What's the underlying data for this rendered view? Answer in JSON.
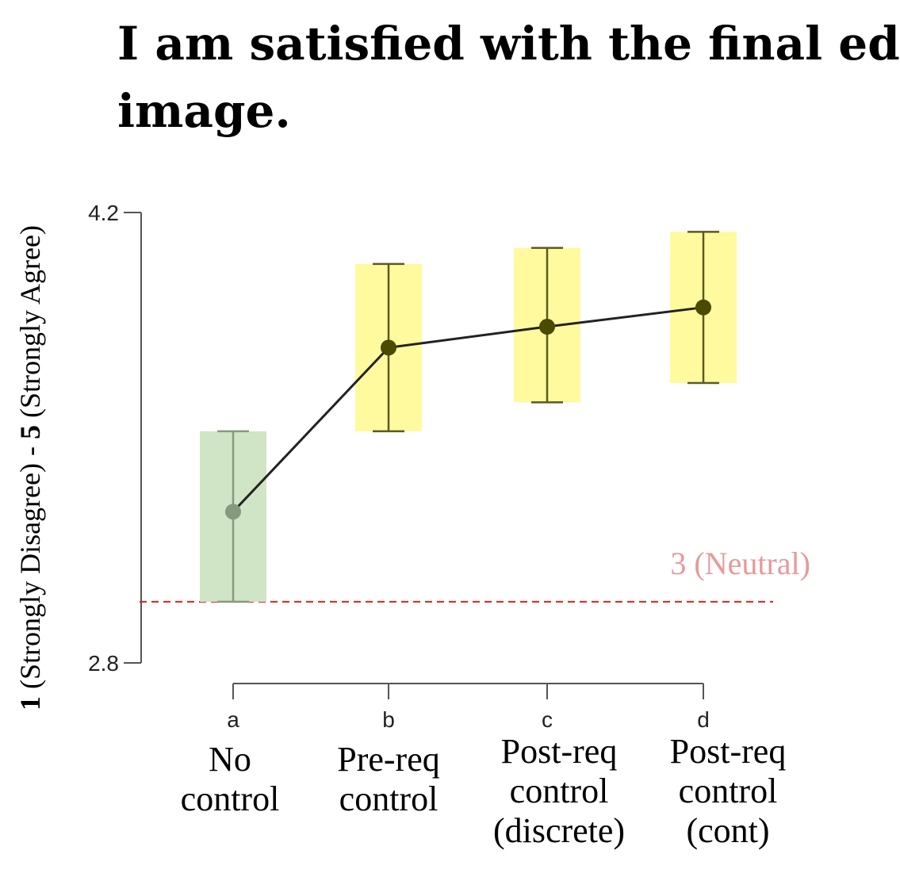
{
  "chart_data": {
    "type": "line",
    "title": "I am satisfied with the final edited image.",
    "title_lines": [
      "I am satisfied with the final edited",
      "image."
    ],
    "ylabel": "1 (Strongly Disagree) - 5 (Strongly Agree)",
    "ylabel_parts": {
      "bold_start": "1",
      "mid": " (Strongly Disagree) - ",
      "bold_mid": "5",
      "end": " (Strongly Agree)"
    },
    "ylim": [
      2.8,
      4.2
    ],
    "yticks": [
      "2.8",
      "4.2"
    ],
    "letters": [
      "a",
      "b",
      "c",
      "d"
    ],
    "categories": [
      [
        "No",
        "control"
      ],
      [
        "Pre-req",
        "control"
      ],
      [
        "Post-req",
        "control",
        "(discrete)"
      ],
      [
        "Post-req",
        "control",
        "(cont)"
      ]
    ],
    "series": [
      {
        "values": [
          3.27,
          3.78,
          3.845,
          3.905
        ],
        "error_low": [
          2.99,
          3.52,
          3.61,
          3.67
        ],
        "error_high": [
          3.52,
          4.04,
          4.09,
          4.14
        ]
      }
    ],
    "reference_line": {
      "value": 2.99,
      "label": "3 (Neutral)",
      "color": "#dd2222"
    },
    "colors": {
      "box_first": "#cfe5c6",
      "box_rest": "#fffa9e",
      "marker_first": "#869a7e",
      "marker_rest": "#4a4a00",
      "errorbar_first": "#869a7e",
      "errorbar_rest": "#5a5a22",
      "line": "#222222",
      "ref_text": "#e8999b"
    }
  }
}
